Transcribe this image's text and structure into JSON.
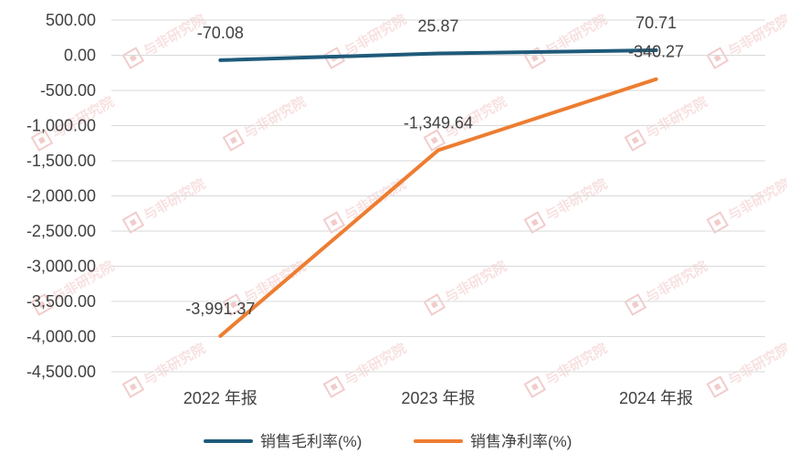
{
  "chart_data": {
    "type": "line",
    "categories": [
      "2022 年报",
      "2023 年报",
      "2024 年报"
    ],
    "series": [
      {
        "name": "销售毛利率(%)",
        "values": [
          -70.08,
          25.87,
          70.71
        ],
        "color": "#1f5a7a",
        "labels": [
          "-70.08",
          "25.87",
          "70.71"
        ]
      },
      {
        "name": "销售净利率(%)",
        "values": [
          -3991.37,
          -1349.64,
          -340.27
        ],
        "color": "#ed7d31",
        "labels": [
          "-3,991.37",
          "-1,349.64",
          "-340.27"
        ]
      }
    ],
    "ylim": [
      -4500,
      500
    ],
    "yticks": [
      500,
      0,
      -500,
      -1000,
      -1500,
      -2000,
      -2500,
      -3000,
      -3500,
      -4000,
      -4500
    ],
    "ytick_labels": [
      "500.00",
      "0.00",
      "-500.00",
      "-1,000.00",
      "-1,500.00",
      "-2,000.00",
      "-2,500.00",
      "-3,000.00",
      "-3,500.00",
      "-4,000.00",
      "-4,500.00"
    ],
    "grid": true,
    "legend": "bottom"
  },
  "watermark": {
    "text": "与非研究院",
    "color": "#e8a3a3"
  }
}
